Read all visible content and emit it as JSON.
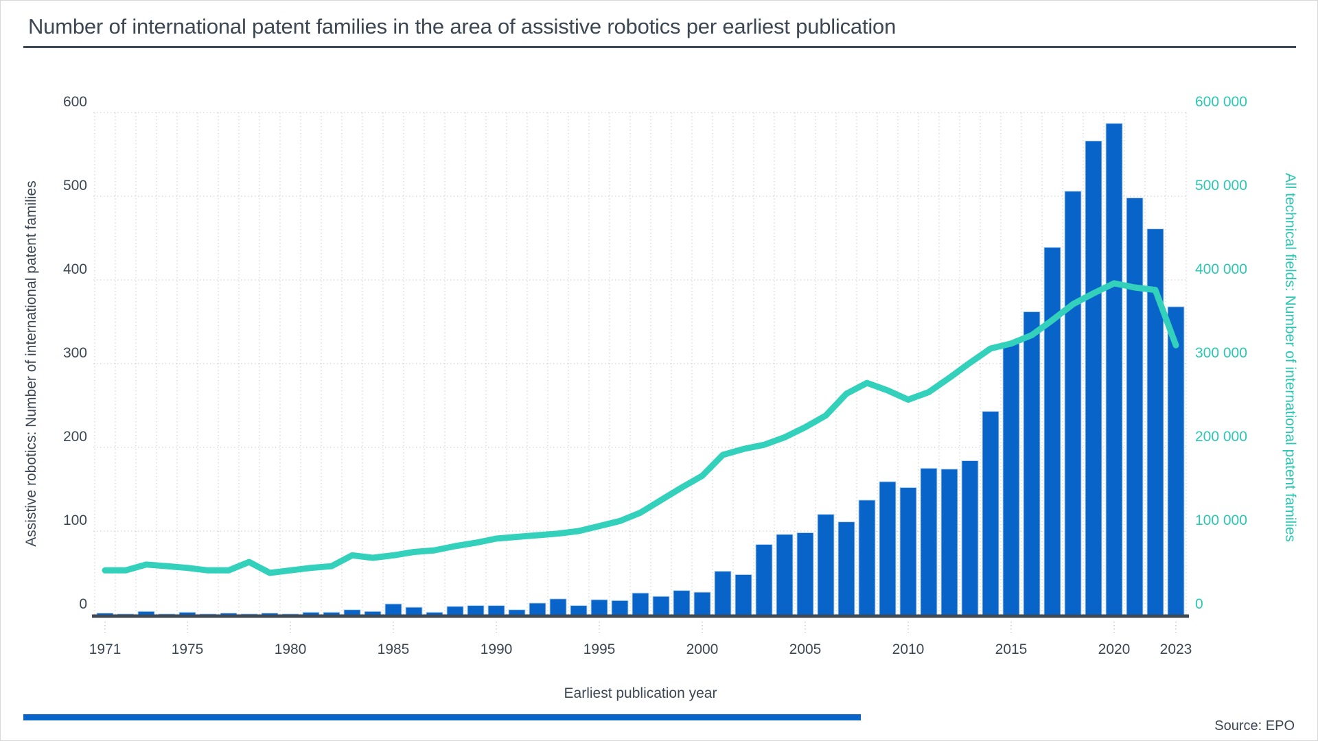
{
  "page": {
    "title": "Number of international patent families in the area of assistive robotics per earliest publication",
    "source": "Source: EPO"
  },
  "colors": {
    "bar": "#0864C8",
    "bar_edge": "#BDD7F0",
    "line": "#33D1BC",
    "right_axis_text": "#2CC7B2",
    "dark_text": "#3C4754",
    "grid": "#C9C9C9",
    "axis_line": "#3E4A56",
    "footer_bar": "#0864C8"
  },
  "chart_data": {
    "type": "bar",
    "subtype": "bar-plus-line-dual-axis",
    "title": "Number of international patent families in the area of assistive robotics per earliest publication",
    "grid": "dotted",
    "legend_position": "none",
    "x_axis": {
      "label": "Earliest publication year",
      "tick_years": [
        1971,
        1975,
        1980,
        1985,
        1990,
        1995,
        2000,
        2005,
        2010,
        2015,
        2020,
        2023
      ]
    },
    "y_axis_left": {
      "label": "Assistive robotics: Number of international patent families",
      "range": [
        0,
        600
      ],
      "tick_interval": 100,
      "tick_labels": [
        "0",
        "100",
        "200",
        "300",
        "400",
        "500",
        "600"
      ]
    },
    "y_axis_right": {
      "label": "All technical fields: Number of international patent families",
      "range": [
        0,
        600000
      ],
      "tick_interval": 100000,
      "tick_labels": [
        "0",
        "100 000",
        "200 000",
        "300 000",
        "400 000",
        "500 000",
        "600 000"
      ]
    },
    "years": [
      1971,
      1972,
      1973,
      1974,
      1975,
      1976,
      1977,
      1978,
      1979,
      1980,
      1981,
      1982,
      1983,
      1984,
      1985,
      1986,
      1987,
      1988,
      1989,
      1990,
      1991,
      1992,
      1993,
      1994,
      1995,
      1996,
      1997,
      1998,
      1999,
      2000,
      2001,
      2002,
      2003,
      2004,
      2005,
      2006,
      2007,
      2008,
      2009,
      2010,
      2011,
      2012,
      2013,
      2014,
      2015,
      2016,
      2017,
      2018,
      2019,
      2020,
      2021,
      2022,
      2023
    ],
    "series": [
      {
        "name": "Assistive robotics: Number of international patent families",
        "type": "bar",
        "axis": "left",
        "color": "#0864C8",
        "values": [
          2,
          1,
          4,
          1,
          3,
          1,
          2,
          1,
          2,
          1,
          3,
          3,
          6,
          4,
          13,
          9,
          3,
          10,
          11,
          11,
          6,
          14,
          19,
          11,
          18,
          17,
          26,
          22,
          29,
          27,
          52,
          48,
          84,
          96,
          98,
          120,
          111,
          137,
          159,
          152,
          175,
          174,
          184,
          243,
          324,
          362,
          439,
          506,
          566,
          587,
          498,
          461,
          368
        ]
      },
      {
        "name": "All technical fields: Number of international patent families",
        "type": "line",
        "axis": "right",
        "color": "#33D1BC",
        "values": [
          53000,
          53000,
          60000,
          58000,
          56000,
          53000,
          53000,
          63000,
          50000,
          53000,
          56000,
          58000,
          71000,
          68000,
          71000,
          75000,
          77000,
          82000,
          86000,
          91000,
          93000,
          95000,
          97000,
          100000,
          106000,
          112000,
          122000,
          137000,
          152000,
          166000,
          191000,
          198000,
          203000,
          212000,
          224000,
          238000,
          264000,
          277000,
          268000,
          257000,
          266000,
          283000,
          301000,
          318000,
          324000,
          334000,
          352000,
          371000,
          384000,
          396000,
          391000,
          388000,
          322000
        ]
      }
    ]
  }
}
